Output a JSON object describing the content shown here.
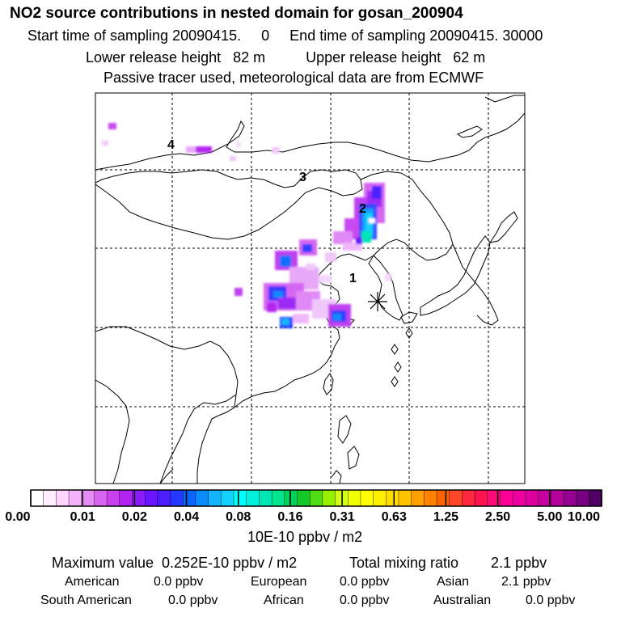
{
  "header": {
    "title": "NO2 source contributions in nested domain for gosan_200904",
    "line1": "Start time of sampling 20090415.     0     End time of sampling 20090415. 30000",
    "line2": "Lower release height   82 m          Upper release height   62 m",
    "line3": "Passive tracer used, meteorological data are from ECMWF"
  },
  "map": {
    "receptor_marker": "asterisk",
    "region_labels": [
      "1",
      "2",
      "3",
      "4"
    ],
    "colors": {
      "coast": "#000000",
      "grid": "#000000"
    }
  },
  "colorbar": {
    "tick_labels": [
      "0.00",
      "0.01",
      "0.02",
      "0.04",
      "0.08",
      "0.16",
      "0.31",
      "0.63",
      "1.25",
      "2.50",
      "5.00",
      "10.00"
    ],
    "colors": [
      "#ffffff",
      "#ffeeff",
      "#ffd4ff",
      "#f5b4fa",
      "#e68cf5",
      "#d966f2",
      "#c840f0",
      "#b324f0",
      "#8c1aff",
      "#6a14ff",
      "#4d1cff",
      "#2438ff",
      "#0a64ff",
      "#0a8cff",
      "#14b4ff",
      "#14d2ff",
      "#00ffff",
      "#00f0dc",
      "#00e6b4",
      "#00e68c",
      "#00d25a",
      "#14c828",
      "#50dc14",
      "#96f000",
      "#d2ff14",
      "#f0ff00",
      "#ffff00",
      "#fff000",
      "#ffdc00",
      "#ffc300",
      "#ffa000",
      "#ff8200",
      "#ff6400",
      "#ff4628",
      "#ff283c",
      "#ff1450",
      "#ff0a78",
      "#ff0096",
      "#f000a0",
      "#dc00a0",
      "#c800a0",
      "#b4009b",
      "#960091",
      "#780082",
      "#500064"
    ],
    "units": "10E-10 ppbv / m2"
  },
  "summary": {
    "max_label": "Maximum value  0.252E-10 ppbv / m2",
    "total_label": "Total mixing ratio        2.1 ppbv",
    "row1": [
      {
        "name": "American",
        "value": "0.0 ppbv"
      },
      {
        "name": "European",
        "value": "0.0 ppbv"
      },
      {
        "name": "Asian",
        "value": "2.1 ppbv"
      }
    ],
    "row2": [
      {
        "name": "South American",
        "value": "0.0 ppbv"
      },
      {
        "name": "African",
        "value": "0.0 ppbv"
      },
      {
        "name": "Australian",
        "value": "0.0 ppbv"
      }
    ]
  }
}
